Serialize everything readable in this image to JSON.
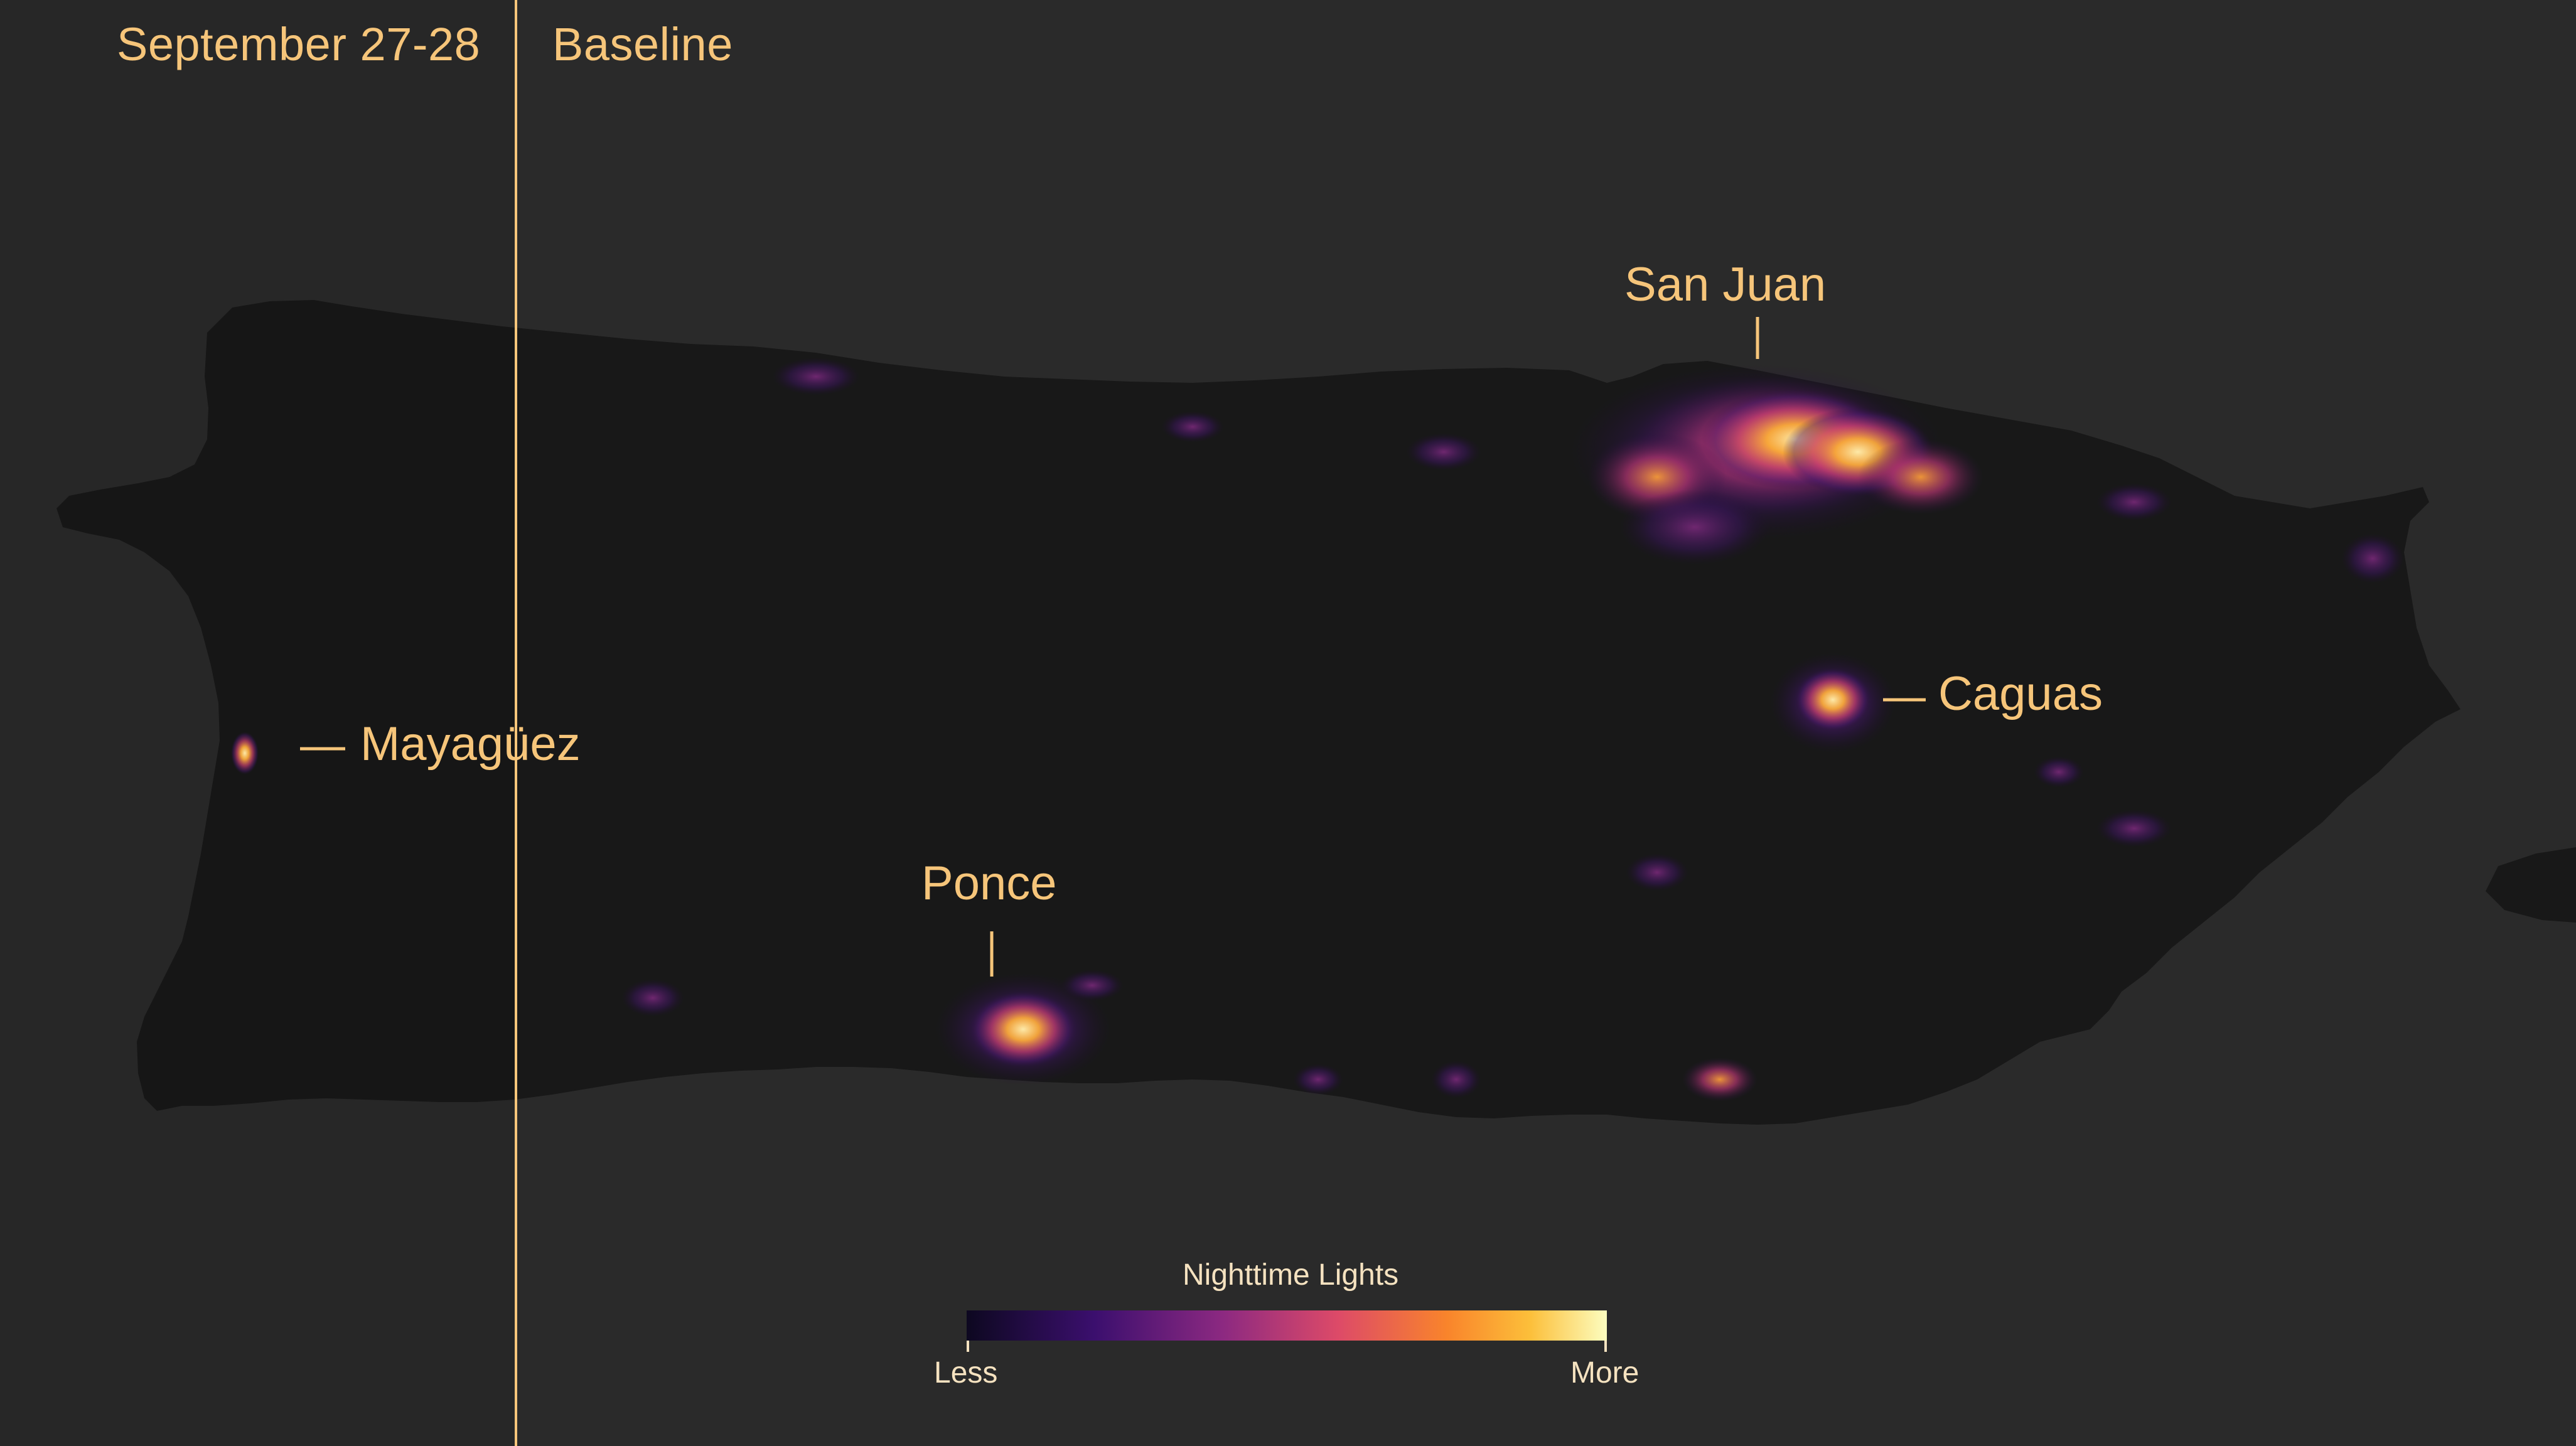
{
  "header": {
    "before_label": "September 27-28",
    "after_label": "Baseline"
  },
  "cities": {
    "san_juan": "San Juan",
    "caguas": "Caguas",
    "mayaguez": "Mayagüez",
    "ponce": "Ponce"
  },
  "legend": {
    "title": "Nighttime Lights",
    "low_label": "Less",
    "high_label": "More",
    "colors": [
      "#0d0820",
      "#3b0f6e",
      "#8c2981",
      "#dd4a68",
      "#f9842b",
      "#fcbf3a",
      "#fcfdbf"
    ]
  },
  "colors": {
    "background": "#2a2a2a",
    "land": "#181818",
    "accent": "#f6c57a"
  }
}
